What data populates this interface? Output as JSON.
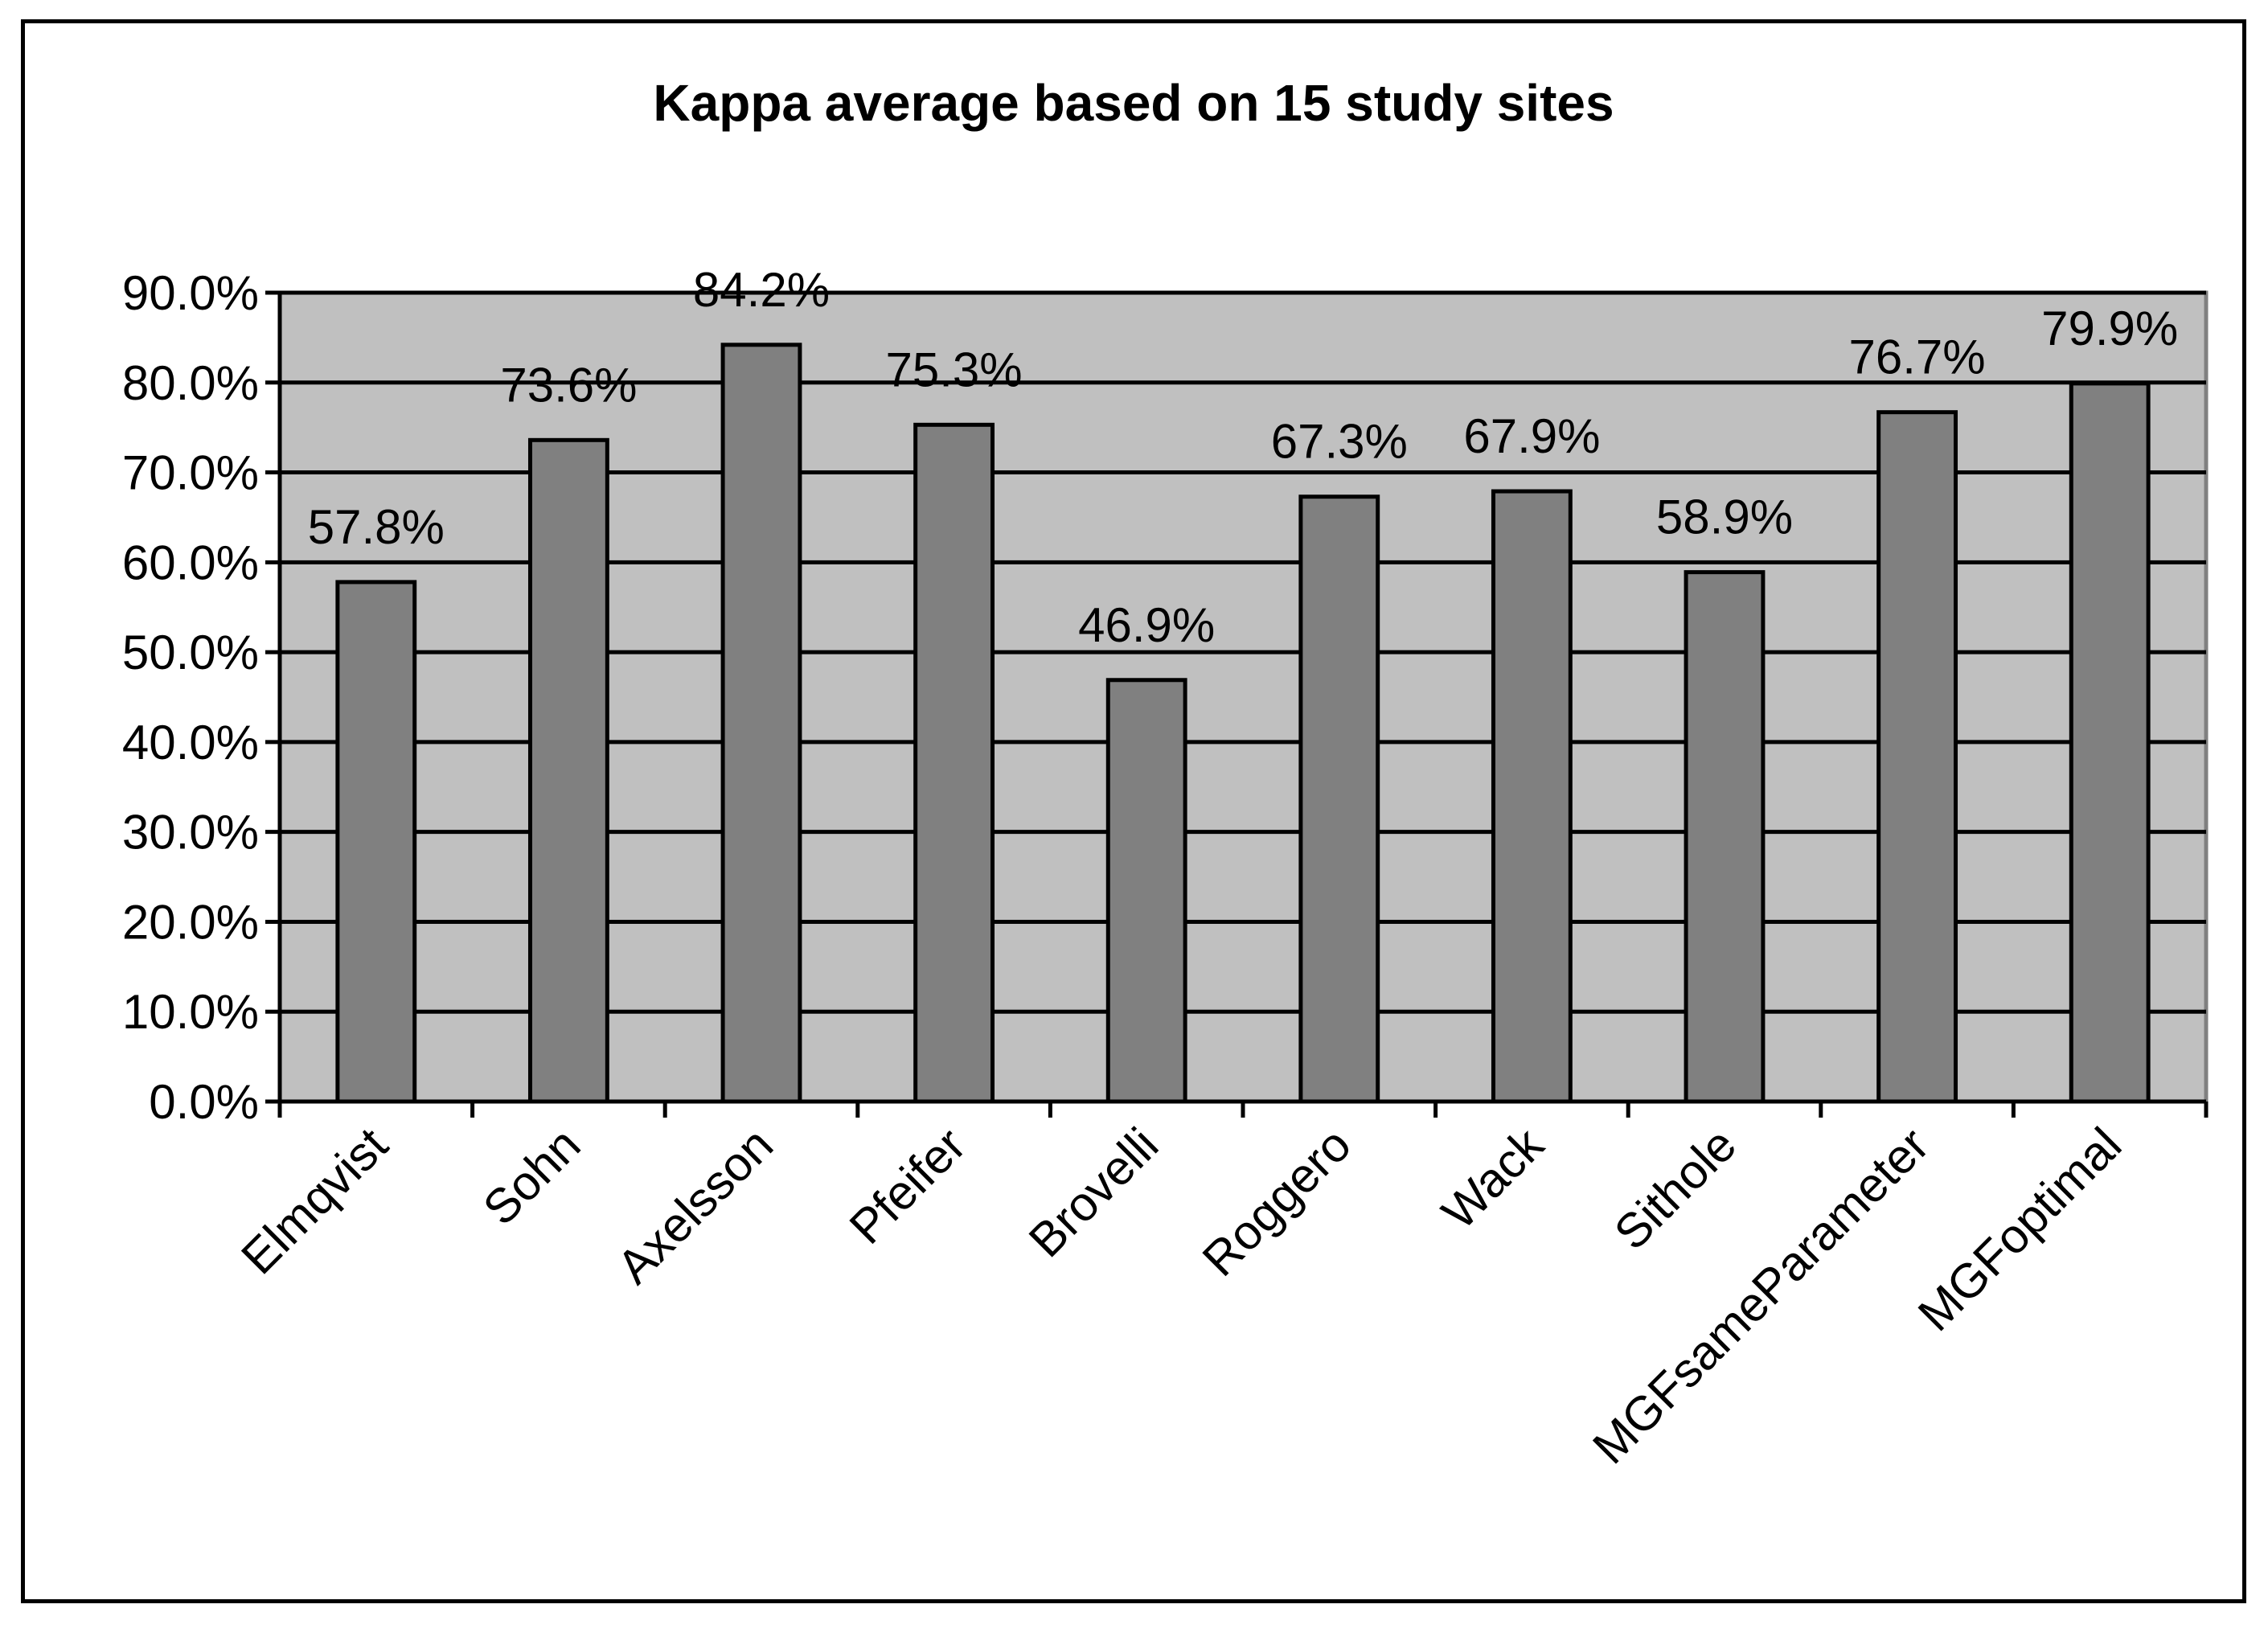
{
  "chart_data": {
    "type": "bar",
    "title": "Kappa average based on 15 study sites",
    "xlabel": "",
    "ylabel": "",
    "categories": [
      "Elmqvist",
      "Sohn",
      "Axelsson",
      "Pfeifer",
      "Brovelli",
      "Roggero",
      "Wack",
      "Sithole",
      "MGFsameParameter",
      "MGFoptimal"
    ],
    "values": [
      57.8,
      73.6,
      84.2,
      75.3,
      46.9,
      67.3,
      67.9,
      58.9,
      76.7,
      79.9
    ],
    "value_labels": [
      "57.8%",
      "73.6%",
      "84.2%",
      "75.3%",
      "46.9%",
      "67.3%",
      "67.9%",
      "58.9%",
      "76.7%",
      "79.9%"
    ],
    "ylim": [
      0,
      90
    ],
    "yticks": [
      0,
      10,
      20,
      30,
      40,
      50,
      60,
      70,
      80,
      90
    ],
    "ytick_labels": [
      "0.0%",
      "10.0%",
      "20.0%",
      "30.0%",
      "40.0%",
      "50.0%",
      "60.0%",
      "70.0%",
      "80.0%",
      "90.0%"
    ],
    "grid": true,
    "legend": "none",
    "colors": {
      "bar_fill": "#808080",
      "plot_background": "#c0c0c0",
      "gridline": "#000000",
      "plot_border": "#808080"
    }
  }
}
